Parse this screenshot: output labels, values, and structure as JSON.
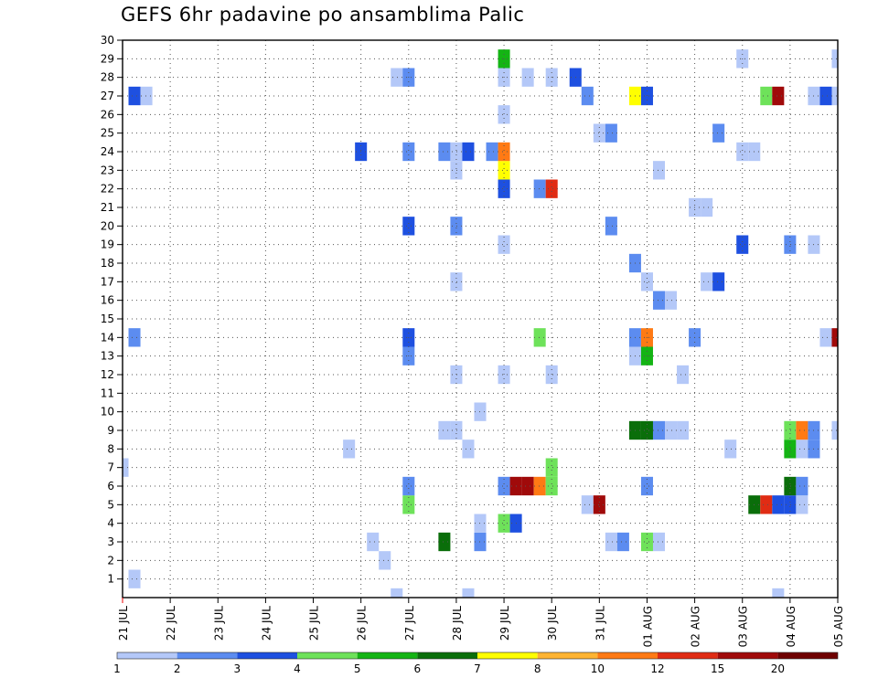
{
  "chart_data": {
    "type": "heatmap",
    "title": "GEFS 6hr padavine po ansamblima Palic",
    "xlabel": "",
    "ylabel": "",
    "x_tick_labels": [
      "21 JUL",
      "22 JUL",
      "23 JUL",
      "24 JUL",
      "25 JUL",
      "26 JUL",
      "27 JUL",
      "28 JUL",
      "29 JUL",
      "30 JUL",
      "31 JUL",
      "01 AUG",
      "02 AUG",
      "03 AUG",
      "04 AUG",
      "05 AUG"
    ],
    "y_tick_labels": [
      "1",
      "2",
      "3",
      "4",
      "5",
      "6",
      "7",
      "8",
      "9",
      "10",
      "11",
      "12",
      "13",
      "14",
      "15",
      "16",
      "17",
      "18",
      "19",
      "20",
      "21",
      "22",
      "23",
      "24",
      "25",
      "26",
      "27",
      "28",
      "29",
      "30"
    ],
    "x_unit": "6-hour step (day index from 21 JUL 00Z)",
    "x_range": [
      0,
      15
    ],
    "y_range": [
      0,
      30
    ],
    "grid": true,
    "colorbar": {
      "ticks": [
        "1",
        "2",
        "3",
        "4",
        "5",
        "6",
        "7",
        "8",
        "10",
        "12",
        "15",
        "20"
      ],
      "colors": [
        "#b4c8f8",
        "#5c8cf0",
        "#1e50e0",
        "#6ee25a",
        "#14b414",
        "#0a6e0a",
        "#ffff00",
        "#ffb432",
        "#ff7a14",
        "#e02c14",
        "#a00a0a",
        "#6e0000"
      ]
    },
    "cells": [
      {
        "x": 0.25,
        "y": 1,
        "v": 1
      },
      {
        "x": 13.75,
        "y": 0,
        "v": 1
      },
      {
        "x": 7.25,
        "y": 0,
        "v": 1
      },
      {
        "x": 5.75,
        "y": 0,
        "v": 1
      },
      {
        "x": 5.5,
        "y": 2,
        "v": 1
      },
      {
        "x": 5.25,
        "y": 3,
        "v": 1
      },
      {
        "x": 6.75,
        "y": 3,
        "v": 6
      },
      {
        "x": 7.5,
        "y": 3,
        "v": 2
      },
      {
        "x": 10.25,
        "y": 3,
        "v": 1
      },
      {
        "x": 10.5,
        "y": 3,
        "v": 2
      },
      {
        "x": 11,
        "y": 3,
        "v": 4
      },
      {
        "x": 11.25,
        "y": 3,
        "v": 1
      },
      {
        "x": 7.5,
        "y": 4,
        "v": 1
      },
      {
        "x": 8,
        "y": 4,
        "v": 4
      },
      {
        "x": 8.25,
        "y": 4,
        "v": 3
      },
      {
        "x": 6,
        "y": 5,
        "v": 4
      },
      {
        "x": 9.75,
        "y": 5,
        "v": 1
      },
      {
        "x": 10,
        "y": 5,
        "v": 15
      },
      {
        "x": 13.25,
        "y": 5,
        "v": 6
      },
      {
        "x": 13.5,
        "y": 5,
        "v": 12
      },
      {
        "x": 13.75,
        "y": 5,
        "v": 3
      },
      {
        "x": 14,
        "y": 5,
        "v": 3
      },
      {
        "x": 14.25,
        "y": 5,
        "v": 1
      },
      {
        "x": 6,
        "y": 6,
        "v": 2
      },
      {
        "x": 8,
        "y": 6,
        "v": 2
      },
      {
        "x": 8.25,
        "y": 6,
        "v": 15
      },
      {
        "x": 8.5,
        "y": 6,
        "v": 15
      },
      {
        "x": 8.75,
        "y": 6,
        "v": 10
      },
      {
        "x": 9,
        "y": 6,
        "v": 4
      },
      {
        "x": 11,
        "y": 6,
        "v": 2
      },
      {
        "x": 14,
        "y": 6,
        "v": 6
      },
      {
        "x": 14.25,
        "y": 6,
        "v": 2
      },
      {
        "x": 0,
        "y": 7,
        "v": 1
      },
      {
        "x": 9,
        "y": 7,
        "v": 4
      },
      {
        "x": 4.75,
        "y": 8,
        "v": 1
      },
      {
        "x": 7.25,
        "y": 8,
        "v": 1
      },
      {
        "x": 12.75,
        "y": 8,
        "v": 1
      },
      {
        "x": 14,
        "y": 8,
        "v": 5
      },
      {
        "x": 14.25,
        "y": 8,
        "v": 1
      },
      {
        "x": 14.5,
        "y": 8,
        "v": 2
      },
      {
        "x": 6.75,
        "y": 9,
        "v": 1
      },
      {
        "x": 7,
        "y": 9,
        "v": 1
      },
      {
        "x": 10.75,
        "y": 9,
        "v": 6
      },
      {
        "x": 11,
        "y": 9,
        "v": 6
      },
      {
        "x": 11.25,
        "y": 9,
        "v": 2
      },
      {
        "x": 11.5,
        "y": 9,
        "v": 1
      },
      {
        "x": 11.75,
        "y": 9,
        "v": 1
      },
      {
        "x": 14,
        "y": 9,
        "v": 4
      },
      {
        "x": 14.25,
        "y": 9,
        "v": 10
      },
      {
        "x": 14.5,
        "y": 9,
        "v": 2
      },
      {
        "x": 15,
        "y": 9,
        "v": 1
      },
      {
        "x": 7.5,
        "y": 10,
        "v": 1
      },
      {
        "x": 7,
        "y": 12,
        "v": 1
      },
      {
        "x": 8,
        "y": 12,
        "v": 1
      },
      {
        "x": 9,
        "y": 12,
        "v": 1
      },
      {
        "x": 11.75,
        "y": 12,
        "v": 1
      },
      {
        "x": 6,
        "y": 13,
        "v": 2
      },
      {
        "x": 10.75,
        "y": 13,
        "v": 1
      },
      {
        "x": 11,
        "y": 13,
        "v": 5
      },
      {
        "x": 0.25,
        "y": 14,
        "v": 2
      },
      {
        "x": 6,
        "y": 14,
        "v": 3
      },
      {
        "x": 8.75,
        "y": 14,
        "v": 4
      },
      {
        "x": 10.75,
        "y": 14,
        "v": 2
      },
      {
        "x": 11,
        "y": 14,
        "v": 10
      },
      {
        "x": 12,
        "y": 14,
        "v": 2
      },
      {
        "x": 14.75,
        "y": 14,
        "v": 1
      },
      {
        "x": 15,
        "y": 14,
        "v": 15
      },
      {
        "x": 11.25,
        "y": 16,
        "v": 2
      },
      {
        "x": 11.5,
        "y": 16,
        "v": 1
      },
      {
        "x": 7,
        "y": 17,
        "v": 1
      },
      {
        "x": 11,
        "y": 17,
        "v": 1
      },
      {
        "x": 12.25,
        "y": 17,
        "v": 1
      },
      {
        "x": 12.5,
        "y": 17,
        "v": 3
      },
      {
        "x": 10.75,
        "y": 18,
        "v": 2
      },
      {
        "x": 8,
        "y": 19,
        "v": 1
      },
      {
        "x": 13,
        "y": 19,
        "v": 3
      },
      {
        "x": 14,
        "y": 19,
        "v": 2
      },
      {
        "x": 14.5,
        "y": 19,
        "v": 1
      },
      {
        "x": 6,
        "y": 20,
        "v": 3
      },
      {
        "x": 7,
        "y": 20,
        "v": 2
      },
      {
        "x": 10.25,
        "y": 20,
        "v": 2
      },
      {
        "x": 12,
        "y": 21,
        "v": 1
      },
      {
        "x": 12.25,
        "y": 21,
        "v": 1
      },
      {
        "x": 8,
        "y": 22,
        "v": 3
      },
      {
        "x": 8.75,
        "y": 22,
        "v": 2
      },
      {
        "x": 9,
        "y": 22,
        "v": 12
      },
      {
        "x": 7,
        "y": 23,
        "v": 1
      },
      {
        "x": 8,
        "y": 23,
        "v": 7
      },
      {
        "x": 11.25,
        "y": 23,
        "v": 1
      },
      {
        "x": 5,
        "y": 24,
        "v": 3
      },
      {
        "x": 6,
        "y": 24,
        "v": 2
      },
      {
        "x": 6.75,
        "y": 24,
        "v": 2
      },
      {
        "x": 7,
        "y": 24,
        "v": 1
      },
      {
        "x": 7.25,
        "y": 24,
        "v": 3
      },
      {
        "x": 7.75,
        "y": 24,
        "v": 2
      },
      {
        "x": 8,
        "y": 24,
        "v": 10
      },
      {
        "x": 13,
        "y": 24,
        "v": 1
      },
      {
        "x": 13.25,
        "y": 24,
        "v": 1
      },
      {
        "x": 10,
        "y": 25,
        "v": 1
      },
      {
        "x": 10.25,
        "y": 25,
        "v": 2
      },
      {
        "x": 12.5,
        "y": 25,
        "v": 2
      },
      {
        "x": 8,
        "y": 26,
        "v": 1
      },
      {
        "x": 0.25,
        "y": 27,
        "v": 3
      },
      {
        "x": 0.5,
        "y": 27,
        "v": 1
      },
      {
        "x": 9.75,
        "y": 27,
        "v": 2
      },
      {
        "x": 10.75,
        "y": 27,
        "v": 7
      },
      {
        "x": 11,
        "y": 27,
        "v": 3
      },
      {
        "x": 13.5,
        "y": 27,
        "v": 4
      },
      {
        "x": 13.75,
        "y": 27,
        "v": 15
      },
      {
        "x": 14.5,
        "y": 27,
        "v": 1
      },
      {
        "x": 14.75,
        "y": 27,
        "v": 3
      },
      {
        "x": 15,
        "y": 27,
        "v": 1
      },
      {
        "x": 5.75,
        "y": 28,
        "v": 1
      },
      {
        "x": 6,
        "y": 28,
        "v": 2
      },
      {
        "x": 8,
        "y": 28,
        "v": 1
      },
      {
        "x": 8.5,
        "y": 28,
        "v": 1
      },
      {
        "x": 9,
        "y": 28,
        "v": 1
      },
      {
        "x": 9.5,
        "y": 28,
        "v": 3
      },
      {
        "x": 8,
        "y": 29,
        "v": 5
      },
      {
        "x": 13,
        "y": 29,
        "v": 1
      },
      {
        "x": 15,
        "y": 29,
        "v": 1
      }
    ]
  }
}
